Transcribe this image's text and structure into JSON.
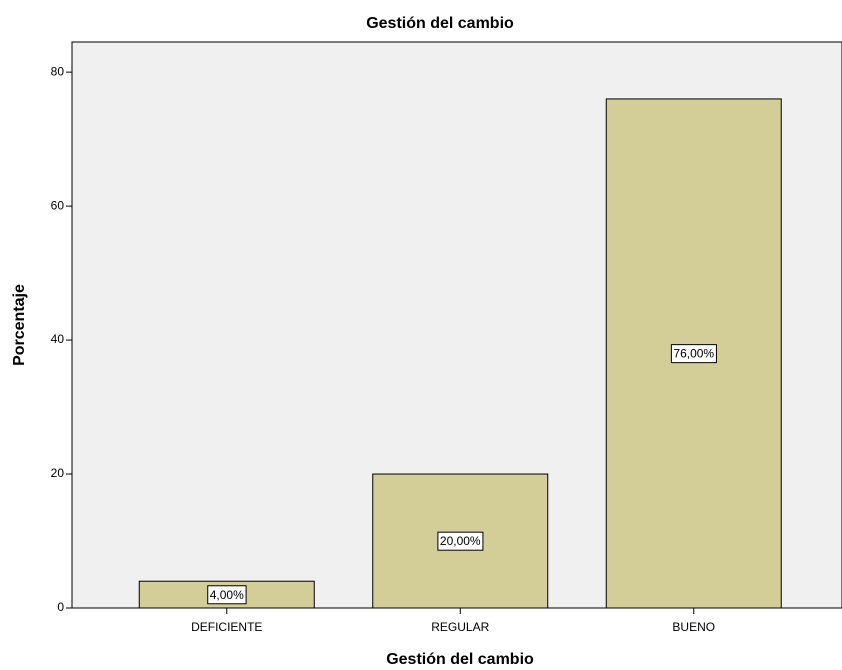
{
  "chart_data": {
    "type": "bar",
    "title": "Gestión del cambio",
    "x_label": "Gestión del cambio",
    "y_label": "Porcentaje",
    "categories": [
      "DEFICIENTE",
      "REGULAR",
      "BUENO"
    ],
    "values": [
      4,
      20,
      76
    ],
    "value_labels": [
      "4,00%",
      "20,00%",
      "76,00%"
    ],
    "color": "#d3ce97",
    "ylim": [
      0,
      84.5
    ],
    "yticks": [
      0,
      20,
      40,
      60,
      80
    ],
    "grid": false
  }
}
